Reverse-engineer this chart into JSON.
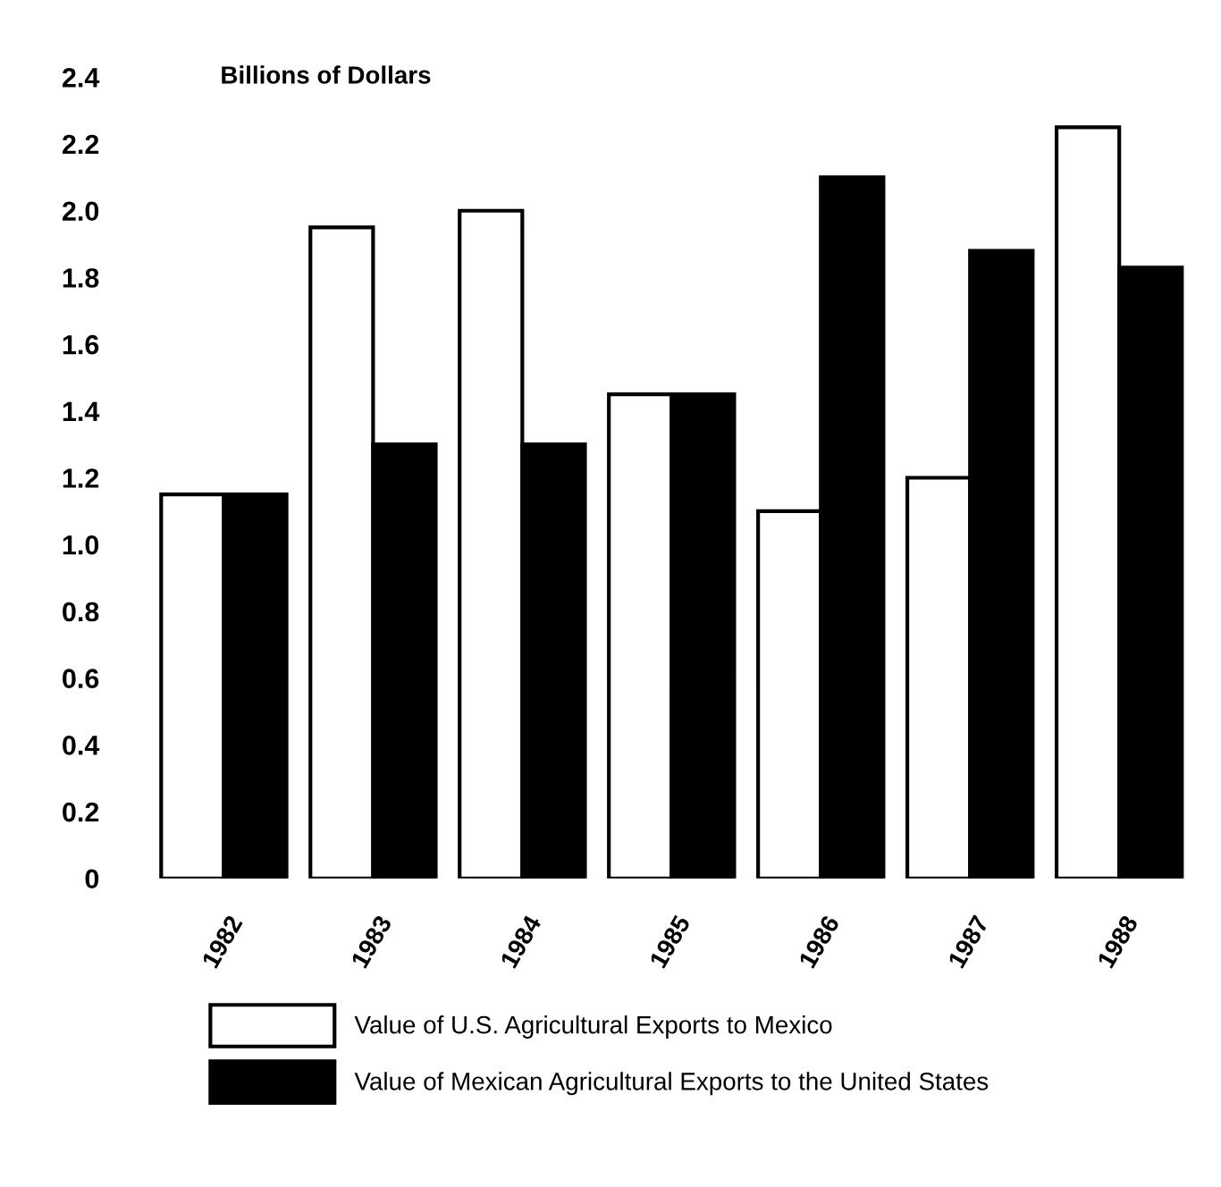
{
  "chart_data": {
    "type": "bar",
    "ylabel": "Billions of Dollars",
    "categories": [
      "1982",
      "1983",
      "1984",
      "1985",
      "1986",
      "1987",
      "1988"
    ],
    "series": [
      {
        "name": "Value of U.S. Agricultural Exports to Mexico",
        "color": "#ffffff",
        "values": [
          1.15,
          1.95,
          2.0,
          1.45,
          1.1,
          1.2,
          2.25
        ]
      },
      {
        "name": "Value of Mexican Agricultural Exports to the United States",
        "color": "#000000",
        "values": [
          1.15,
          1.3,
          1.3,
          1.45,
          2.1,
          1.88,
          1.83
        ]
      }
    ],
    "ylim": [
      0,
      2.4
    ],
    "yticks": [
      {
        "value": 0,
        "label": "0"
      },
      0.2,
      0.4,
      0.6,
      0.8,
      {
        "value": 1,
        "label": "1.0"
      },
      1.2,
      1.4,
      1.6,
      1.8,
      {
        "value": 2,
        "label": "2.0"
      },
      2.2,
      2.4
    ],
    "grid": false,
    "legend": "bottom"
  }
}
